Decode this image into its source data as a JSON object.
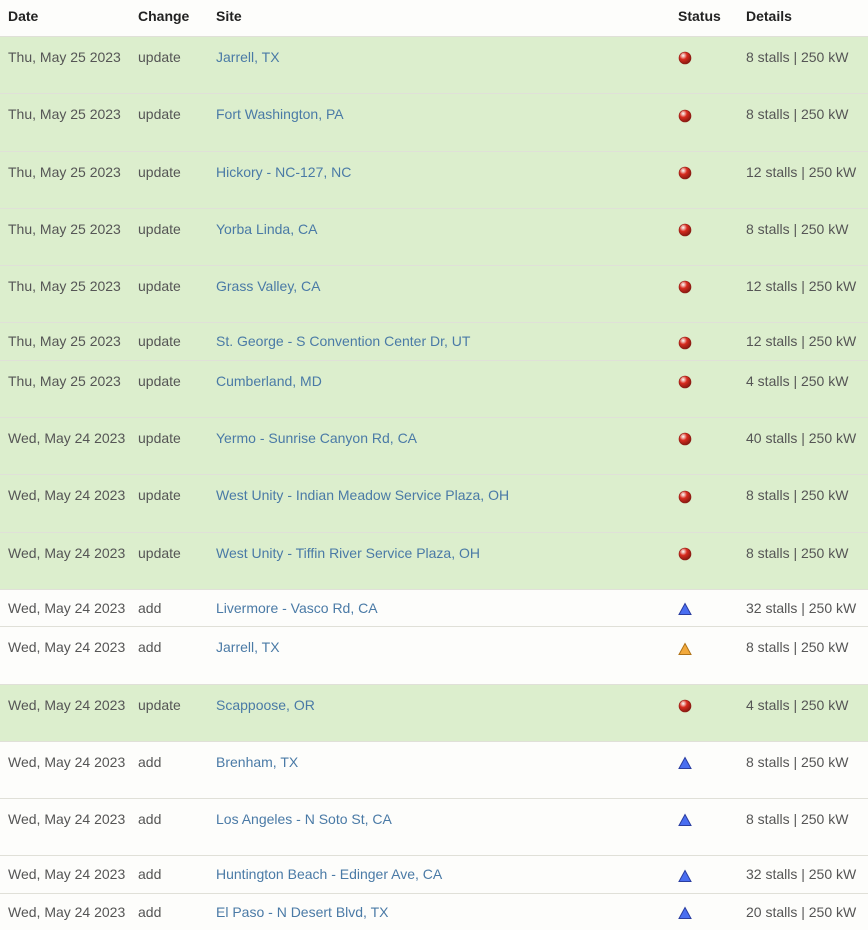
{
  "columns": {
    "date": "Date",
    "change": "Change",
    "site": "Site",
    "status": "Status",
    "details": "Details"
  },
  "status_icons": {
    "red-circle": {
      "shape": "circle",
      "fill": "#d92b1f",
      "stroke": "#8a1a12"
    },
    "blue-triangle": {
      "shape": "triangle",
      "fill": "#4a6ef0",
      "stroke": "#2a3da0"
    },
    "orange-triangle": {
      "shape": "triangle",
      "fill": "#f2a93c",
      "stroke": "#b07317"
    }
  },
  "rows": [
    {
      "date": "Thu, May 25 2023",
      "change": "update",
      "site": "Jarrell, TX",
      "status": "red-circle",
      "details": "8 stalls | 250 kW",
      "alt": true,
      "tall": true
    },
    {
      "date": "Thu, May 25 2023",
      "change": "update",
      "site": "Fort Washington, PA",
      "status": "red-circle",
      "details": "8 stalls | 250 kW",
      "alt": true,
      "tall": true
    },
    {
      "date": "Thu, May 25 2023",
      "change": "update",
      "site": "Hickory - NC-127, NC",
      "status": "red-circle",
      "details": "12 stalls | 250 kW",
      "alt": true,
      "tall": true
    },
    {
      "date": "Thu, May 25 2023",
      "change": "update",
      "site": "Yorba Linda, CA",
      "status": "red-circle",
      "details": "8 stalls | 250 kW",
      "alt": true,
      "tall": true
    },
    {
      "date": "Thu, May 25 2023",
      "change": "update",
      "site": "Grass Valley, CA",
      "status": "red-circle",
      "details": "12 stalls | 250 kW",
      "alt": true,
      "tall": true
    },
    {
      "date": "Thu, May 25 2023",
      "change": "update",
      "site": "St. George - S Convention Center Dr, UT",
      "status": "red-circle",
      "details": "12 stalls | 250 kW",
      "alt": true,
      "tall": false
    },
    {
      "date": "Thu, May 25 2023",
      "change": "update",
      "site": "Cumberland, MD",
      "status": "red-circle",
      "details": "4 stalls | 250 kW",
      "alt": true,
      "tall": true
    },
    {
      "date": "Wed, May 24 2023",
      "change": "update",
      "site": "Yermo - Sunrise Canyon Rd, CA",
      "status": "red-circle",
      "details": "40 stalls | 250 kW",
      "alt": true,
      "tall": true
    },
    {
      "date": "Wed, May 24 2023",
      "change": "update",
      "site": "West Unity - Indian Meadow Service Plaza, OH",
      "status": "red-circle",
      "details": "8 stalls | 250 kW",
      "alt": true,
      "tall": true
    },
    {
      "date": "Wed, May 24 2023",
      "change": "update",
      "site": "West Unity - Tiffin River Service Plaza, OH",
      "status": "red-circle",
      "details": "8 stalls | 250 kW",
      "alt": true,
      "tall": true
    },
    {
      "date": "Wed, May 24 2023",
      "change": "add",
      "site": "Livermore - Vasco Rd, CA",
      "status": "blue-triangle",
      "details": "32 stalls | 250 kW",
      "alt": false,
      "tall": false
    },
    {
      "date": "Wed, May 24 2023",
      "change": "add",
      "site": "Jarrell, TX",
      "status": "orange-triangle",
      "details": "8 stalls | 250 kW",
      "alt": false,
      "tall": true
    },
    {
      "date": "Wed, May 24 2023",
      "change": "update",
      "site": "Scappoose, OR",
      "status": "red-circle",
      "details": "4 stalls | 250 kW",
      "alt": true,
      "tall": true
    },
    {
      "date": "Wed, May 24 2023",
      "change": "add",
      "site": "Brenham, TX",
      "status": "blue-triangle",
      "details": "8 stalls | 250 kW",
      "alt": false,
      "tall": true
    },
    {
      "date": "Wed, May 24 2023",
      "change": "add",
      "site": "Los Angeles - N Soto St, CA",
      "status": "blue-triangle",
      "details": "8 stalls | 250 kW",
      "alt": false,
      "tall": true
    },
    {
      "date": "Wed, May 24 2023",
      "change": "add",
      "site": "Huntington Beach - Edinger Ave, CA",
      "status": "blue-triangle",
      "details": "32 stalls | 250 kW",
      "alt": false,
      "tall": false
    },
    {
      "date": "Wed, May 24 2023",
      "change": "add",
      "site": "El Paso - N Desert Blvd, TX",
      "status": "blue-triangle",
      "details": "20 stalls | 250 kW",
      "alt": false,
      "tall": false
    }
  ]
}
